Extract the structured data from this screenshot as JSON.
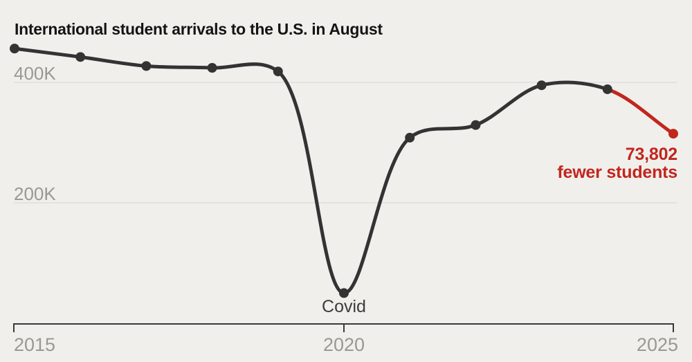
{
  "colors": {
    "background": "#f0efec",
    "line": "#333333",
    "highlight": "#c1261d",
    "gridline": "#e0deda",
    "axis": "#3a3a3a",
    "tick_label": "#9a9894",
    "title_text": "#141414",
    "covid_label": "#3c3c3c"
  },
  "chart_data": {
    "type": "line",
    "title": "International student arrivals to the U.S. in August",
    "x": [
      2015,
      2016,
      2017,
      2018,
      2019,
      2020,
      2021,
      2022,
      2023,
      2024,
      2025
    ],
    "values_thousands": [
      455,
      441,
      426,
      423,
      417,
      49,
      307,
      328,
      394,
      387.4,
      313.6
    ],
    "unit": "students",
    "series": [
      {
        "name": "International student arrivals in August",
        "values_thousands": [
          455,
          441,
          426,
          423,
          417,
          49,
          307,
          328,
          394,
          387.4,
          313.6
        ]
      }
    ],
    "y_ticks": [
      {
        "label": "400K",
        "value_thousands": 400
      },
      {
        "label": "200K",
        "value_thousands": 200
      }
    ],
    "x_ticks": [
      {
        "label": "2015",
        "year": 2015
      },
      {
        "label": "2020",
        "year": 2020
      },
      {
        "label": "2025",
        "year": 2025
      }
    ],
    "ylim_thousands": [
      0,
      470
    ],
    "grid": "horizontal-only",
    "legend": "none",
    "marker": "point-on-every-year",
    "annotations": {
      "covid": {
        "text": "Covid",
        "year": 2020
      },
      "final_drop": {
        "line1": "73,802",
        "line2": "fewer students",
        "change": -73802,
        "from_year": 2024,
        "to_year": 2025
      }
    },
    "highlight_segment": {
      "from_year": 2024,
      "to_year": 2025
    }
  }
}
